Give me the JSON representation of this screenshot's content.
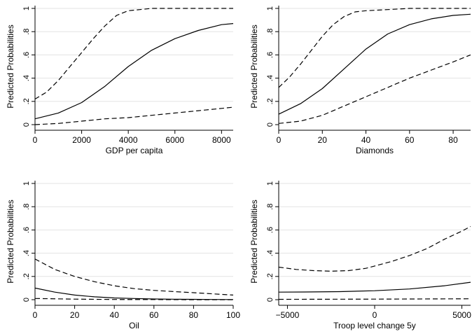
{
  "chart_data": [
    {
      "type": "line",
      "xlabel": "GDP per capita",
      "ylabel": "Predicted Probabilities",
      "xlim": [
        0,
        8500
      ],
      "ylim": [
        0,
        1
      ],
      "xticks": [
        0,
        2000,
        4000,
        6000,
        8000
      ],
      "xtick_labels": [
        "0",
        "2000",
        "4000",
        "6000",
        "8000"
      ],
      "yticks": [
        0,
        0.2,
        0.4,
        0.6,
        0.8,
        1
      ],
      "ytick_labels": [
        "0",
        ".2",
        ".4",
        ".6",
        ".8",
        "1"
      ],
      "series": [
        {
          "style": "solid",
          "x": [
            0,
            1000,
            2000,
            3000,
            4000,
            5000,
            6000,
            7000,
            8000,
            8500
          ],
          "y": [
            0.05,
            0.1,
            0.19,
            0.33,
            0.5,
            0.64,
            0.74,
            0.81,
            0.86,
            0.87
          ]
        },
        {
          "style": "dashed",
          "x": [
            0,
            500,
            1000,
            1500,
            2000,
            2500,
            3000,
            3500,
            4000,
            4500,
            5000,
            6000,
            7000,
            8000,
            8500
          ],
          "y": [
            0.22,
            0.28,
            0.38,
            0.5,
            0.62,
            0.74,
            0.85,
            0.94,
            0.98,
            0.99,
            1.0,
            1.0,
            1.0,
            1.0,
            1.0
          ]
        },
        {
          "style": "dashed",
          "x": [
            0,
            1000,
            2000,
            3000,
            4000,
            5000,
            6000,
            7000,
            8000,
            8500
          ],
          "y": [
            0.0,
            0.01,
            0.03,
            0.05,
            0.06,
            0.08,
            0.1,
            0.12,
            0.14,
            0.15
          ]
        }
      ]
    },
    {
      "type": "line",
      "xlabel": "Diamonds",
      "ylabel": "Predicted Probabilities",
      "xlim": [
        0,
        88
      ],
      "ylim": [
        0,
        1
      ],
      "xticks": [
        0,
        20,
        40,
        60,
        80
      ],
      "xtick_labels": [
        "0",
        "20",
        "40",
        "60",
        "80"
      ],
      "yticks": [
        0,
        0.2,
        0.4,
        0.6,
        0.8,
        1
      ],
      "ytick_labels": [
        "0",
        ".2",
        ".4",
        ".6",
        ".8",
        "1"
      ],
      "series": [
        {
          "style": "solid",
          "x": [
            0,
            10,
            20,
            30,
            40,
            50,
            60,
            70,
            80,
            88
          ],
          "y": [
            0.09,
            0.18,
            0.31,
            0.48,
            0.65,
            0.78,
            0.86,
            0.91,
            0.94,
            0.95
          ]
        },
        {
          "style": "dashed",
          "x": [
            0,
            5,
            10,
            15,
            20,
            25,
            30,
            35,
            40,
            50,
            60,
            70,
            80,
            88
          ],
          "y": [
            0.32,
            0.41,
            0.52,
            0.64,
            0.76,
            0.86,
            0.93,
            0.97,
            0.98,
            0.99,
            1.0,
            1.0,
            1.0,
            1.0
          ]
        },
        {
          "style": "dashed",
          "x": [
            0,
            10,
            20,
            30,
            40,
            50,
            60,
            70,
            80,
            88
          ],
          "y": [
            0.01,
            0.03,
            0.08,
            0.16,
            0.24,
            0.32,
            0.4,
            0.47,
            0.54,
            0.6
          ]
        }
      ]
    },
    {
      "type": "line",
      "xlabel": "Oil",
      "ylabel": "Predicted Probabilities",
      "xlim": [
        0,
        100
      ],
      "ylim": [
        0,
        1
      ],
      "xticks": [
        0,
        20,
        40,
        60,
        80,
        100
      ],
      "xtick_labels": [
        "0",
        "20",
        "40",
        "60",
        "80",
        "100"
      ],
      "yticks": [
        0,
        0.2,
        0.4,
        0.6,
        0.8,
        1
      ],
      "ytick_labels": [
        "0",
        ".2",
        ".4",
        ".6",
        ".8",
        "1"
      ],
      "series": [
        {
          "style": "solid",
          "x": [
            0,
            10,
            20,
            30,
            40,
            50,
            60,
            70,
            80,
            90,
            100
          ],
          "y": [
            0.1,
            0.065,
            0.04,
            0.025,
            0.015,
            0.01,
            0.006,
            0.004,
            0.003,
            0.002,
            0.001
          ]
        },
        {
          "style": "dashed",
          "x": [
            0,
            10,
            20,
            30,
            40,
            50,
            60,
            70,
            80,
            90,
            100
          ],
          "y": [
            0.35,
            0.26,
            0.2,
            0.155,
            0.12,
            0.095,
            0.08,
            0.07,
            0.06,
            0.05,
            0.04
          ]
        },
        {
          "style": "dashed",
          "x": [
            0,
            20,
            40,
            60,
            80,
            100
          ],
          "y": [
            0.01,
            0.005,
            0.002,
            0.001,
            0.0,
            0.0
          ]
        }
      ]
    },
    {
      "type": "line",
      "xlabel": "Troop level change 5y",
      "ylabel": "Predicted Probabilities",
      "xlim": [
        -5500,
        5500
      ],
      "ylim": [
        0,
        1
      ],
      "xticks": [
        -5000,
        0,
        5000
      ],
      "xtick_labels": [
        "−5000",
        "0",
        "5000"
      ],
      "yticks": [
        0,
        0.2,
        0.4,
        0.6,
        0.8,
        1
      ],
      "ytick_labels": [
        "0",
        ".2",
        ".4",
        ".6",
        ".8",
        "1"
      ],
      "series": [
        {
          "style": "solid",
          "x": [
            -5500,
            -4000,
            -2000,
            0,
            2000,
            4000,
            5500
          ],
          "y": [
            0.065,
            0.066,
            0.069,
            0.077,
            0.092,
            0.12,
            0.15
          ]
        },
        {
          "style": "dashed",
          "x": [
            -5500,
            -4500,
            -3500,
            -2500,
            -1500,
            -500,
            0,
            1000,
            2000,
            3000,
            4000,
            5000,
            5500
          ],
          "y": [
            0.28,
            0.26,
            0.25,
            0.245,
            0.25,
            0.27,
            0.29,
            0.33,
            0.38,
            0.44,
            0.52,
            0.59,
            0.63
          ]
        },
        {
          "style": "dashed",
          "x": [
            -5500,
            0,
            5500
          ],
          "y": [
            0.003,
            0.005,
            0.008
          ]
        }
      ]
    }
  ]
}
